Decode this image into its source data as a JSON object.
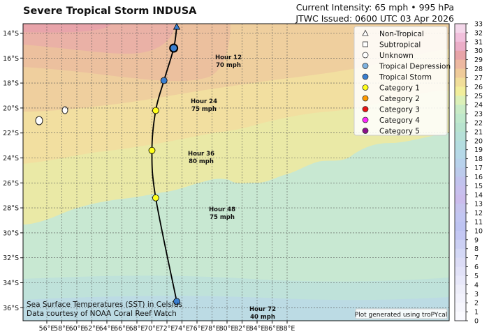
{
  "header": {
    "title": "Severe Tropical Storm INDUSA",
    "intensity": "Current Intensity: 65 mph • 995 hPa",
    "issued": "JTWC Issued: 0600 UTC 03 Apr 2026"
  },
  "axes": {
    "lon_ticks": [
      "56°E",
      "58°E",
      "60°E",
      "62°E",
      "64°E",
      "66°E",
      "68°E",
      "70°E",
      "72°E",
      "74°E",
      "76°E",
      "78°E",
      "80°E",
      "82°E",
      "84°E",
      "86°E",
      "88°E"
    ],
    "lat_ticks": [
      "14°S",
      "16°S",
      "18°S",
      "20°S",
      "22°S",
      "24°S",
      "26°S",
      "28°S",
      "30°S",
      "32°S",
      "34°S",
      "36°S"
    ]
  },
  "colorbar": {
    "ticks": [
      "33",
      "32",
      "31",
      "30",
      "29",
      "28",
      "27",
      "26",
      "25",
      "24",
      "23",
      "22",
      "21",
      "20",
      "19",
      "18",
      "17",
      "16",
      "15",
      "14",
      "13",
      "12",
      "11",
      "10",
      "9",
      "8",
      "7",
      "6",
      "5",
      "4",
      "3",
      "2",
      "1",
      "0"
    ],
    "colors": [
      "#f4d7ea",
      "#f1c0dc",
      "#ebaec8",
      "#e8a4a8",
      "#edb8a0",
      "#efcb9a",
      "#f1de9a",
      "#f2ee9c",
      "#dcf0b8",
      "#c9ebc6",
      "#bfe8cc",
      "#b8e3cf",
      "#b6e0d8",
      "#b4dde0",
      "#b6d9e8",
      "#b8d2ec",
      "#bccbec",
      "#c2c3ee",
      "#c8c0ee",
      "#cbbcec",
      "#c6c4ee",
      "#c2c6f2",
      "#bec4f2",
      "#c4c8f4",
      "#ccd0f4",
      "#d4d8f6",
      "#dcdcf6",
      "#e2e2f8",
      "#e8e8fa",
      "#eeeefa",
      "#f2f2fc",
      "#f6f6fd",
      "#fafaff"
    ]
  },
  "legend": {
    "items": [
      {
        "label": "Non-Tropical",
        "symbol": "triangle",
        "color": "#ffffff"
      },
      {
        "label": "Subtropical",
        "symbol": "square",
        "color": "#ffffff"
      },
      {
        "label": "Unknown",
        "symbol": "circle",
        "color": "#ffffff"
      },
      {
        "label": "Tropical Depression",
        "symbol": "circle",
        "color": "#7fb2e0"
      },
      {
        "label": "Tropical Storm",
        "symbol": "circle",
        "color": "#3a7fd0"
      },
      {
        "label": "Category 1",
        "symbol": "circle",
        "color": "#ffff1a"
      },
      {
        "label": "Category 2",
        "symbol": "circle",
        "color": "#ff9a00"
      },
      {
        "label": "Category 3",
        "symbol": "circle",
        "color": "#e81414"
      },
      {
        "label": "Category 4",
        "symbol": "circle",
        "color": "#ff28ff"
      },
      {
        "label": "Category 5",
        "symbol": "circle",
        "color": "#8c0f8c"
      }
    ]
  },
  "track": {
    "points": [
      {
        "lon": 73.3,
        "lat": -13.5,
        "color": "#3a7fd0",
        "kind": "triangle"
      },
      {
        "lon": 72.9,
        "lat": -15.2,
        "color": "#3a7fd0",
        "kind": "current"
      },
      {
        "lon": 71.6,
        "lat": -17.8,
        "color": "#3a7fd0"
      },
      {
        "lon": 70.5,
        "lat": -20.2,
        "color": "#ffff1a"
      },
      {
        "lon": 70.0,
        "lat": -23.4,
        "color": "#ffff1a"
      },
      {
        "lon": 70.5,
        "lat": -27.2,
        "color": "#ffff1a"
      },
      {
        "lon": 73.3,
        "lat": -35.5,
        "color": "#3a7fd0"
      }
    ],
    "labels": [
      {
        "line1": "Hour 12",
        "line2": "70 mph"
      },
      {
        "line1": "Hour 24",
        "line2": "75 mph"
      },
      {
        "line1": "Hour 36",
        "line2": "80 mph"
      },
      {
        "line1": "Hour 48",
        "line2": "75 mph"
      },
      {
        "line1": "Hour 72",
        "line2": "40 mph"
      }
    ]
  },
  "footer": {
    "sst_line1": "Sea Surface Temperatures (SST) in Celsius",
    "sst_line2": "Data courtesy of NOAA Coral Reef Watch",
    "credit": "Plot generated using troPYcal"
  }
}
